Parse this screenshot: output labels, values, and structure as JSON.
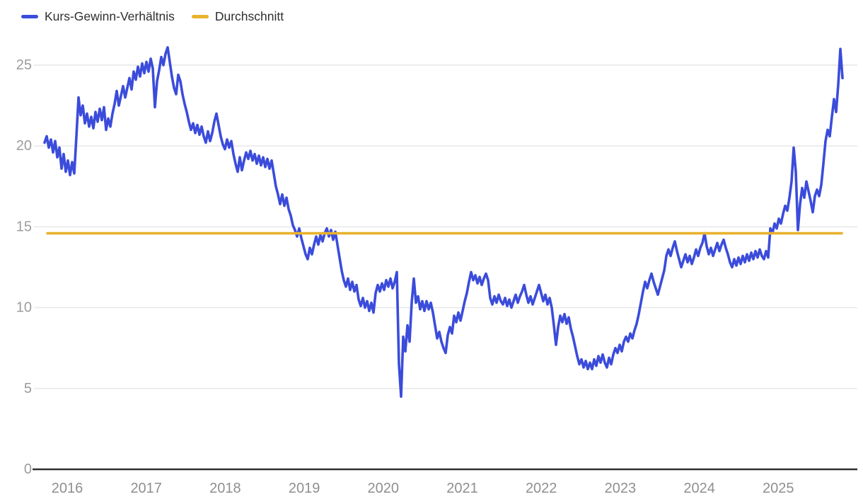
{
  "legend": {
    "items": [
      {
        "label": "Kurs-Gewinn-Verhältnis"
      },
      {
        "label": "Durchschnitt"
      }
    ]
  },
  "colors": {
    "series_blue": "#3b4cdb",
    "average_yellow": "#e8b32c",
    "gridline": "#e6e6e6",
    "axis_line": "#2f2f2f",
    "y_tick_label": "#9c9c9c",
    "x_tick_label": "#8f8f8f",
    "legend_text": "#2f2f2f"
  },
  "chart_data": {
    "type": "line",
    "title": "",
    "xlabel": "",
    "ylabel": "",
    "grid": "horizontal",
    "legend_position": "top-left",
    "x_ticks": [
      2016,
      2017,
      2018,
      2019,
      2020,
      2021,
      2022,
      2023,
      2024,
      2025
    ],
    "y_ticks": [
      0,
      5,
      10,
      15,
      20,
      25
    ],
    "xlim": [
      2015.7135,
      2025.812
    ],
    "ylim": [
      0,
      25
    ],
    "series": [
      {
        "name": "Kurs-Gewinn-Verhältnis",
        "color": "#3b4cdb",
        "x_start": 2015.7135,
        "x_step": 0.026858,
        "values": [
          20.2,
          20.6,
          19.9,
          20.4,
          19.6,
          20.3,
          19.3,
          19.9,
          18.6,
          19.5,
          18.4,
          19.1,
          18.2,
          19.0,
          18.3,
          20.6,
          23.0,
          21.9,
          22.5,
          21.4,
          22.0,
          21.2,
          21.8,
          21.1,
          22.1,
          21.5,
          22.3,
          21.6,
          22.4,
          21.0,
          21.7,
          21.2,
          22.0,
          22.6,
          23.4,
          22.5,
          23.1,
          23.7,
          23.0,
          23.6,
          24.2,
          23.5,
          24.6,
          24.1,
          24.9,
          24.3,
          25.1,
          24.5,
          25.2,
          24.6,
          25.4,
          24.8,
          22.4,
          24.0,
          24.7,
          25.5,
          25.0,
          25.7,
          26.1,
          25.2,
          24.3,
          23.6,
          23.2,
          24.4,
          24.0,
          23.2,
          22.6,
          22.1,
          21.5,
          21.0,
          21.4,
          20.8,
          21.3,
          20.7,
          21.2,
          20.6,
          20.2,
          20.9,
          20.3,
          20.8,
          21.5,
          22.0,
          21.3,
          20.6,
          20.1,
          19.8,
          20.4,
          19.9,
          20.3,
          19.5,
          18.9,
          18.4,
          19.3,
          18.5,
          19.1,
          19.6,
          19.2,
          19.7,
          19.1,
          19.5,
          18.9,
          19.4,
          18.8,
          19.3,
          18.7,
          19.2,
          18.6,
          19.1,
          18.3,
          17.5,
          17.0,
          16.4,
          17.0,
          16.3,
          16.8,
          16.1,
          15.7,
          15.1,
          14.8,
          14.4,
          14.9,
          14.3,
          13.8,
          13.3,
          13.0,
          13.7,
          13.3,
          13.9,
          14.4,
          13.9,
          14.5,
          14.1,
          14.6,
          14.9,
          14.4,
          14.8,
          14.2,
          14.7,
          13.9,
          13.1,
          12.3,
          11.7,
          11.3,
          11.8,
          11.1,
          11.6,
          11.0,
          11.4,
          10.5,
          10.1,
          10.6,
          10.0,
          10.4,
          9.8,
          10.3,
          9.7,
          10.9,
          11.4,
          11.0,
          11.5,
          11.1,
          11.7,
          11.3,
          11.8,
          11.2,
          11.6,
          12.2,
          6.5,
          4.5,
          8.2,
          7.3,
          8.9,
          7.9,
          10.3,
          11.8,
          10.3,
          10.7,
          9.9,
          10.4,
          9.8,
          10.4,
          9.9,
          10.3,
          9.7,
          8.9,
          8.1,
          8.5,
          7.9,
          7.5,
          7.2,
          8.3,
          8.8,
          8.4,
          9.5,
          9.1,
          9.7,
          9.2,
          9.8,
          10.4,
          10.9,
          11.6,
          12.2,
          11.7,
          12.0,
          11.5,
          11.9,
          11.4,
          11.8,
          12.1,
          11.7,
          10.6,
          10.2,
          10.7,
          10.3,
          10.8,
          10.4,
          10.2,
          10.6,
          10.1,
          10.5,
          10.0,
          10.4,
          10.8,
          10.3,
          10.7,
          11.0,
          11.4,
          10.8,
          10.3,
          10.7,
          10.2,
          10.6,
          11.0,
          11.4,
          10.9,
          10.4,
          10.8,
          10.2,
          10.6,
          10.0,
          8.9,
          7.7,
          8.8,
          9.5,
          9.1,
          9.6,
          9.0,
          9.4,
          8.7,
          8.2,
          7.6,
          7.0,
          6.5,
          6.8,
          6.3,
          6.7,
          6.2,
          6.6,
          6.2,
          6.8,
          6.4,
          7.0,
          6.6,
          7.1,
          6.6,
          6.3,
          6.9,
          6.5,
          7.1,
          7.5,
          7.2,
          7.7,
          7.3,
          7.9,
          8.2,
          7.9,
          8.4,
          8.1,
          8.6,
          9.0,
          9.6,
          10.3,
          11.0,
          11.6,
          11.2,
          11.7,
          12.1,
          11.6,
          11.2,
          10.8,
          11.3,
          11.8,
          12.3,
          13.2,
          13.6,
          13.2,
          13.7,
          14.1,
          13.5,
          13.0,
          12.5,
          12.9,
          13.3,
          12.8,
          13.2,
          12.7,
          13.1,
          13.6,
          13.2,
          13.7,
          14.0,
          14.6,
          13.8,
          13.3,
          13.7,
          13.2,
          13.6,
          14.0,
          13.5,
          13.9,
          14.2,
          13.7,
          13.3,
          12.8,
          12.5,
          13.0,
          12.6,
          13.1,
          12.7,
          13.2,
          12.8,
          13.3,
          12.9,
          13.4,
          13.0,
          13.5,
          13.1,
          13.6,
          13.2,
          13.0,
          13.5,
          13.1,
          14.9,
          14.6,
          15.2,
          14.9,
          15.5,
          15.2,
          15.8,
          16.3,
          16.0,
          16.8,
          17.8,
          19.9,
          18.4,
          14.8,
          16.4,
          17.4,
          16.8,
          17.8,
          17.2,
          16.6,
          15.9,
          16.9,
          17.3,
          16.9,
          17.6,
          18.9,
          20.3,
          21.0,
          20.6,
          21.8,
          22.9,
          22.1,
          23.8,
          26.0,
          24.2
        ]
      },
      {
        "name": "Durchschnitt",
        "color": "#e8b32c",
        "value": 14.6,
        "x_range": [
          2015.75,
          2025.803
        ]
      }
    ]
  }
}
